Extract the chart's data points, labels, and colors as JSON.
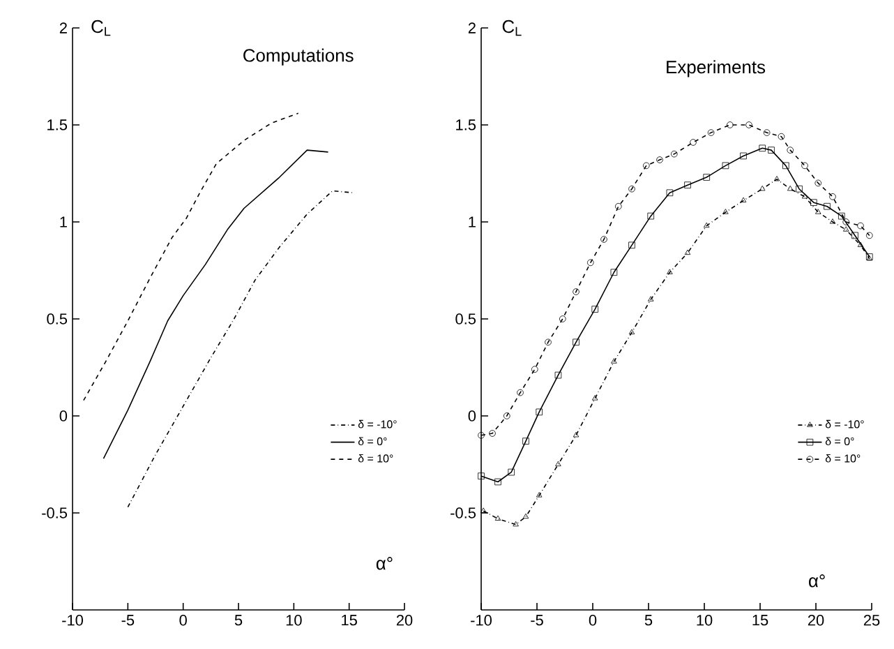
{
  "chart_data": [
    {
      "type": "line",
      "title": "Computations",
      "xlabel": "α°",
      "ylabel": "C$_{L}$",
      "xlim": [
        -10,
        20
      ],
      "ylim": [
        -1,
        2
      ],
      "xticks": [
        -10,
        -5,
        0,
        5,
        10,
        15,
        20
      ],
      "yticks": [
        -0.5,
        0,
        0.5,
        1,
        1.5,
        2
      ],
      "legend": "right",
      "series": [
        {
          "name": "δ = -10°",
          "color": "#000000",
          "line_style": "dashdot",
          "x": [
            -5,
            -2.5,
            0.3,
            2.5,
            4.5,
            6.5,
            8.7,
            11.2,
            13.5,
            15.4
          ],
          "values": [
            -0.47,
            -0.2,
            0.08,
            0.3,
            0.49,
            0.7,
            0.87,
            1.04,
            1.16,
            1.15
          ]
        },
        {
          "name": "δ = 0°",
          "color": "#000000",
          "line_style": "solid",
          "x": [
            -7.2,
            -5,
            -3,
            -1.4,
            0,
            2,
            4,
            5.5,
            8.7,
            11.2,
            13.1
          ],
          "values": [
            -0.22,
            0.03,
            0.28,
            0.49,
            0.62,
            0.78,
            0.96,
            1.07,
            1.23,
            1.37,
            1.36
          ]
        },
        {
          "name": "δ = 10°",
          "color": "#000000",
          "line_style": "dashed",
          "x": [
            -9,
            -7,
            -5,
            -3,
            -1,
            0.3,
            1.5,
            3,
            5.5,
            8,
            10.4
          ],
          "values": [
            0.08,
            0.28,
            0.49,
            0.71,
            0.92,
            1.02,
            1.15,
            1.3,
            1.42,
            1.51,
            1.56
          ]
        }
      ]
    },
    {
      "type": "line",
      "title": "Experiments",
      "xlabel": "α°",
      "ylabel": "C$_{L}$",
      "xlim": [
        -10,
        25
      ],
      "ylim": [
        -1,
        2
      ],
      "xticks": [
        -10,
        -5,
        0,
        5,
        10,
        15,
        20,
        25
      ],
      "yticks": [
        -0.5,
        0,
        0.5,
        1,
        1.5,
        2
      ],
      "legend": "right",
      "series": [
        {
          "name": "δ = -10°",
          "color": "#000000",
          "line_style": "dashdot",
          "marker": "triangle",
          "x": [
            -9.8,
            -8.5,
            -6.9,
            -6,
            -4.8,
            -3.1,
            -1.5,
            0.2,
            1.9,
            3.5,
            5.2,
            6.9,
            8.5,
            10.2,
            11.9,
            13.5,
            15.2,
            16.5,
            17.7,
            19,
            20.2,
            21.5,
            22.7,
            24,
            24.8
          ],
          "values": [
            -0.49,
            -0.53,
            -0.56,
            -0.52,
            -0.41,
            -0.25,
            -0.1,
            0.09,
            0.28,
            0.43,
            0.6,
            0.74,
            0.84,
            0.98,
            1.05,
            1.11,
            1.17,
            1.22,
            1.17,
            1.13,
            1.05,
            1.0,
            0.96,
            0.88,
            0.81
          ]
        },
        {
          "name": "δ = 0°",
          "color": "#000000",
          "line_style": "solid",
          "marker": "square",
          "x": [
            -10,
            -8.5,
            -7.3,
            -6,
            -4.8,
            -3.1,
            -1.5,
            0.2,
            1.9,
            3.5,
            5.2,
            6.9,
            8.5,
            10.2,
            11.9,
            13.5,
            15.2,
            16,
            17.3,
            18.5,
            19.8,
            21,
            22.3,
            23.5,
            24.8
          ],
          "values": [
            -0.31,
            -0.34,
            -0.29,
            -0.13,
            0.02,
            0.21,
            0.38,
            0.55,
            0.74,
            0.88,
            1.03,
            1.15,
            1.19,
            1.23,
            1.29,
            1.34,
            1.38,
            1.37,
            1.29,
            1.17,
            1.1,
            1.08,
            1.03,
            0.93,
            0.82
          ]
        },
        {
          "name": "δ = 10°",
          "color": "#000000",
          "line_style": "dashed",
          "marker": "circle",
          "x": [
            -10,
            -9,
            -7.7,
            -6.5,
            -5.2,
            -4,
            -2.7,
            -1.5,
            -0.2,
            1,
            2.3,
            3.5,
            4.8,
            6,
            7.3,
            9,
            10.6,
            12.3,
            14,
            15.6,
            16.9,
            17.7,
            19,
            20.2,
            21.5,
            22.7,
            24,
            24.8
          ],
          "values": [
            -0.1,
            -0.09,
            0,
            0.12,
            0.24,
            0.38,
            0.5,
            0.64,
            0.79,
            0.91,
            1.08,
            1.17,
            1.29,
            1.32,
            1.35,
            1.41,
            1.46,
            1.5,
            1.5,
            1.46,
            1.44,
            1.37,
            1.29,
            1.2,
            1.13,
            1.0,
            0.98,
            0.93
          ]
        }
      ]
    }
  ]
}
